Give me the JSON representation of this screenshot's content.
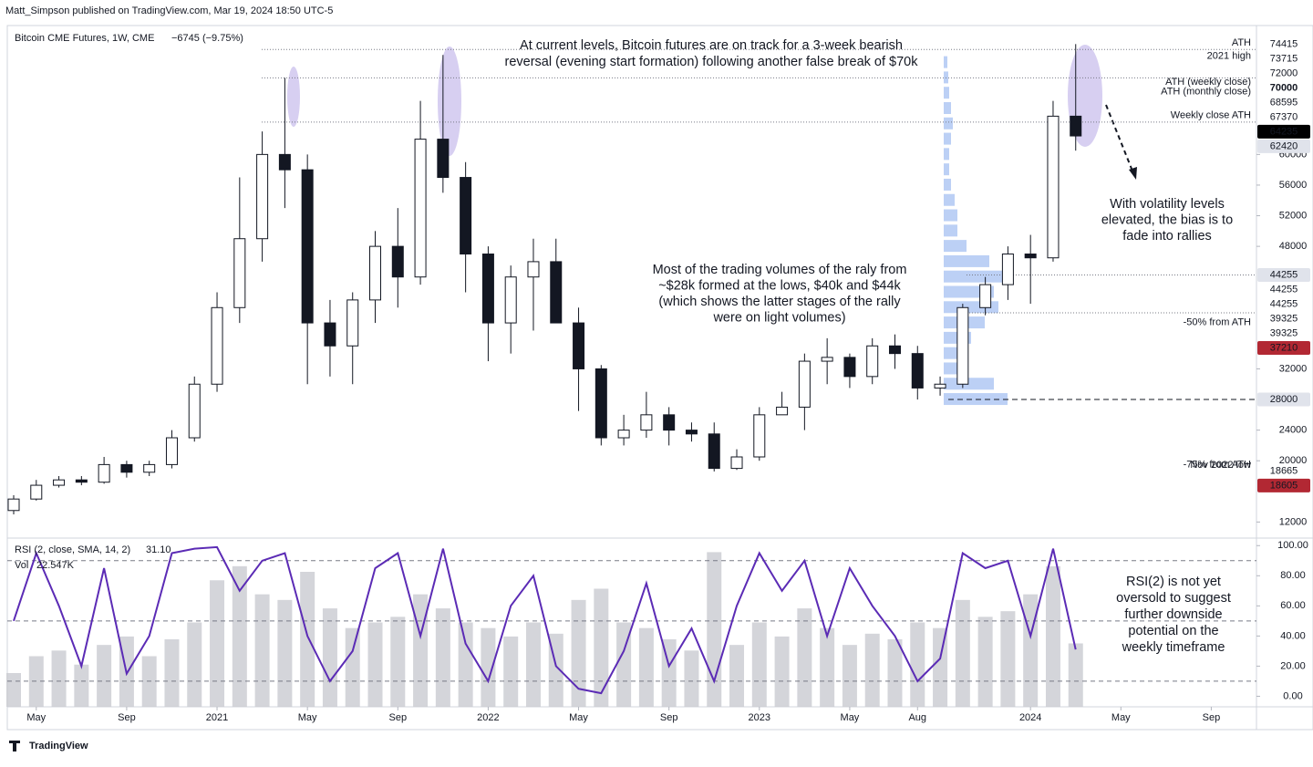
{
  "header": {
    "byline": "Matt_Simpson published on TradingView.com, Mar 19, 2024 18:50 UTC-5"
  },
  "footer": {
    "brand": "TradingView"
  },
  "chart_data": [
    {
      "type": "candlestick",
      "title": "Bitcoin CME Futures, 1W, CME",
      "subtitle": "−6745 (−9.75%)",
      "x": [
        "2020-04",
        "2020-05",
        "2020-06",
        "2020-07",
        "2020-08",
        "2020-09",
        "2020-10",
        "2020-11",
        "2020-12",
        "2021-01",
        "2021-02",
        "2021-03",
        "2021-04",
        "2021-05",
        "2021-06",
        "2021-07",
        "2021-08",
        "2021-09",
        "2021-10",
        "2021-11",
        "2021-12",
        "2022-01",
        "2022-02",
        "2022-03",
        "2022-04",
        "2022-05",
        "2022-06",
        "2022-07",
        "2022-08",
        "2022-09",
        "2022-10",
        "2022-11",
        "2022-12",
        "2023-01",
        "2023-02",
        "2023-03",
        "2023-04",
        "2023-05",
        "2023-06",
        "2023-07",
        "2023-08",
        "2023-09",
        "2023-10",
        "2023-11",
        "2023-12",
        "2024-01",
        "2024-02",
        "2024-03"
      ],
      "open": [
        13500,
        15000,
        16800,
        17500,
        17200,
        19500,
        18500,
        19500,
        23000,
        30000,
        40000,
        49000,
        60000,
        58000,
        38000,
        35000,
        41000,
        48000,
        44000,
        62000,
        57000,
        47000,
        38000,
        44000,
        46000,
        38000,
        32000,
        23000,
        24000,
        26000,
        24000,
        23500,
        19000,
        20500,
        26000,
        27000,
        33000,
        33500,
        31000,
        35000,
        34000,
        29500,
        30000,
        40000,
        43000,
        47000,
        46500,
        65000
      ],
      "high": [
        15500,
        17500,
        18000,
        18000,
        20500,
        20000,
        20000,
        24000,
        31000,
        42000,
        57000,
        63000,
        70000,
        60000,
        41000,
        42000,
        50000,
        53000,
        67000,
        73000,
        59000,
        48000,
        45500,
        49000,
        49000,
        40000,
        32500,
        26000,
        29000,
        27000,
        25000,
        25000,
        21500,
        27000,
        29000,
        34000,
        36000,
        34000,
        36000,
        36500,
        35000,
        31000,
        40500,
        44000,
        48000,
        49500,
        67000,
        74415
      ],
      "low": [
        13000,
        14800,
        16500,
        16800,
        17000,
        17800,
        18000,
        19000,
        22500,
        29000,
        38000,
        46000,
        53000,
        30000,
        31000,
        30000,
        38000,
        40000,
        43000,
        55000,
        42000,
        33000,
        34000,
        37000,
        38000,
        26500,
        22000,
        22000,
        23000,
        22000,
        22500,
        18600,
        18800,
        20000,
        26000,
        24000,
        30000,
        29500,
        30000,
        32000,
        28000,
        28500,
        29500,
        39000,
        41000,
        40500,
        46000,
        60500
      ],
      "close": [
        15000,
        16800,
        17500,
        17200,
        19500,
        18500,
        19500,
        23000,
        30000,
        40000,
        49000,
        60000,
        58000,
        38000,
        35000,
        41000,
        48000,
        44000,
        62000,
        57000,
        47000,
        38000,
        44000,
        46000,
        38000,
        32000,
        23000,
        24000,
        26000,
        24000,
        23500,
        19000,
        20500,
        26000,
        27000,
        33000,
        33500,
        31000,
        35000,
        34000,
        29500,
        30000,
        40000,
        43000,
        47000,
        46500,
        65000,
        62420
      ],
      "xlim": [
        "2020-04",
        "2024-11"
      ],
      "xticks": [
        {
          "value": "2020-05",
          "label": "May"
        },
        {
          "value": "2020-09",
          "label": "Sep"
        },
        {
          "value": "2021-01",
          "label": "2021"
        },
        {
          "value": "2021-05",
          "label": "May"
        },
        {
          "value": "2021-09",
          "label": "Sep"
        },
        {
          "value": "2022-01",
          "label": "2022"
        },
        {
          "value": "2022-05",
          "label": "May"
        },
        {
          "value": "2022-09",
          "label": "Sep"
        },
        {
          "value": "2023-01",
          "label": "2023"
        },
        {
          "value": "2023-05",
          "label": "May"
        },
        {
          "value": "2023-08",
          "label": "Aug"
        },
        {
          "value": "2024-01",
          "label": "2024"
        },
        {
          "value": "2024-05",
          "label": "May"
        },
        {
          "value": "2024-09",
          "label": "Sep"
        }
      ],
      "ylim": [
        9900,
        76600
      ],
      "yticks": [
        12000,
        20000,
        24000,
        32000,
        48000,
        52000,
        56000,
        60000
      ],
      "levels": [
        {
          "value": 74415,
          "bg": "#ffffff",
          "fg": "#131722"
        },
        {
          "value": 73715,
          "note": "ATH",
          "bg": "#ffffff",
          "fg": "#131722",
          "line": true
        },
        {
          "value": 72000,
          "note": "2021 high",
          "bg": "#ffffff",
          "fg": "#b2b5be"
        },
        {
          "value": 70000,
          "bg": "#ffffff",
          "fg": "#000000",
          "line": true
        },
        {
          "value": 68595,
          "note": "ATH (weekly close)",
          "bg": "#ffffff",
          "fg": "#131722"
        },
        {
          "value": 67370,
          "note": "ATH (monthly close)",
          "bg": "#ffffff",
          "fg": "#131722"
        },
        {
          "value": 64235,
          "note": "Weekly close ATH",
          "bg": "#000000",
          "fg": "#ffffff",
          "line": true
        },
        {
          "value": 62420,
          "bg": "#e0e3eb",
          "fg": "#131722"
        },
        {
          "value": 44255,
          "bg": "#e0e3eb",
          "fg": "#131722",
          "line": true
        },
        {
          "value": 44255,
          "bg": "#ffffff",
          "fg": "#131722"
        },
        {
          "value": 44255,
          "bg": "#ffffff",
          "fg": "#131722"
        },
        {
          "value": 39325,
          "bg": "#ffffff",
          "fg": "#131722",
          "line": true
        },
        {
          "value": 39325,
          "bg": "#ffffff",
          "fg": "#131722"
        },
        {
          "value": 37210,
          "note": "-50% from ATH",
          "note_color": "#b22833",
          "bg": "#b22833",
          "fg": "#ffffff"
        },
        {
          "value": 28000,
          "bg": "#e0e3eb",
          "fg": "#131722",
          "line": true
        },
        {
          "value": 18665,
          "note": "-75% from ATH",
          "note_color": "#b22833",
          "bg": "#ffffff",
          "fg": "#131722"
        },
        {
          "value": 18605,
          "note": "Nov 2022 low",
          "note_color": "#9598a1",
          "bg": "#b22833",
          "fg": "#ffffff"
        }
      ],
      "volume_profile": {
        "color": "#8fb0ef",
        "prices": [
          28000,
          30000,
          32000,
          34000,
          36000,
          38000,
          40000,
          42000,
          44000,
          46000,
          48000,
          50000,
          52000,
          54000,
          56000,
          58000,
          60000,
          62000,
          64000,
          66000,
          68000,
          70000,
          72000
        ],
        "values": [
          70,
          55,
          20,
          25,
          30,
          45,
          60,
          55,
          70,
          50,
          25,
          15,
          15,
          12,
          8,
          6,
          6,
          8,
          10,
          8,
          6,
          5,
          4
        ],
        "xlim": [
          0,
          100
        ]
      },
      "annotations": [
        {
          "color": "#6a1fc9",
          "lines": [
            "At current levels, Bitcoin futures are on track for a 3-week bearish",
            "reversal (evening start formation) following another false break of $70k"
          ]
        },
        {
          "color": "#2a5fe0",
          "lines": [
            "Most of the trading volumes of the raly from",
            "~$28k formed at the lows, $40k and $44k",
            "(which shows the latter stages of the rally",
            "were on light volumes)"
          ]
        },
        {
          "color": "#131722",
          "lines": [
            "With volatility levels",
            "elevated, the bias is to",
            "fade into rallies"
          ]
        }
      ]
    },
    {
      "type": "line",
      "x": [
        "2020-04",
        "2020-05",
        "2020-06",
        "2020-07",
        "2020-08",
        "2020-09",
        "2020-10",
        "2020-11",
        "2020-12",
        "2021-01",
        "2021-02",
        "2021-03",
        "2021-04",
        "2021-05",
        "2021-06",
        "2021-07",
        "2021-08",
        "2021-09",
        "2021-10",
        "2021-11",
        "2021-12",
        "2022-01",
        "2022-02",
        "2022-03",
        "2022-04",
        "2022-05",
        "2022-06",
        "2022-07",
        "2022-08",
        "2022-09",
        "2022-10",
        "2022-11",
        "2022-12",
        "2023-01",
        "2023-02",
        "2023-03",
        "2023-04",
        "2023-05",
        "2023-06",
        "2023-07",
        "2023-08",
        "2023-09",
        "2023-10",
        "2023-11",
        "2023-12",
        "2024-01",
        "2024-02",
        "2024-03"
      ],
      "series": [
        {
          "name": "RSI (2, close, SMA, 14, 2)",
          "color": "#5b2bb5",
          "last_label": "31.10",
          "values": [
            50,
            95,
            60,
            20,
            85,
            15,
            40,
            95,
            98,
            99,
            70,
            90,
            95,
            40,
            10,
            30,
            85,
            95,
            40,
            98,
            35,
            10,
            60,
            80,
            20,
            5,
            2,
            30,
            75,
            20,
            45,
            10,
            60,
            95,
            70,
            90,
            40,
            85,
            60,
            40,
            10,
            25,
            95,
            85,
            90,
            40,
            98,
            31.1
          ]
        },
        {
          "name": "Vol",
          "color": "#c9cbd1",
          "last_label": "22.547K",
          "values": [
            12,
            18,
            20,
            15,
            22,
            25,
            18,
            24,
            30,
            45,
            50,
            40,
            38,
            48,
            35,
            28,
            30,
            32,
            40,
            35,
            30,
            28,
            25,
            30,
            26,
            38,
            42,
            30,
            28,
            24,
            20,
            55,
            22,
            30,
            25,
            35,
            28,
            22,
            26,
            24,
            30,
            28,
            38,
            32,
            34,
            40,
            50,
            22.547
          ]
        }
      ],
      "ylim": [
        -7,
        105
      ],
      "yticks": [
        {
          "value": 0,
          "label": "0.00"
        },
        {
          "value": 20,
          "label": "20.00"
        },
        {
          "value": 40,
          "label": "40.00"
        },
        {
          "value": 60,
          "label": "60.00"
        },
        {
          "value": 80,
          "label": "80.00"
        },
        {
          "value": 100,
          "label": "100.00"
        }
      ],
      "levels": [
        10,
        50,
        90
      ],
      "volume_lim": [
        0,
        60
      ],
      "annotations": [
        {
          "color": "#6a1fc9",
          "lines": [
            "RSI(2) is not yet",
            "oversold to suggest",
            "further downside",
            "potential on the",
            "weekly timeframe"
          ]
        }
      ]
    }
  ]
}
